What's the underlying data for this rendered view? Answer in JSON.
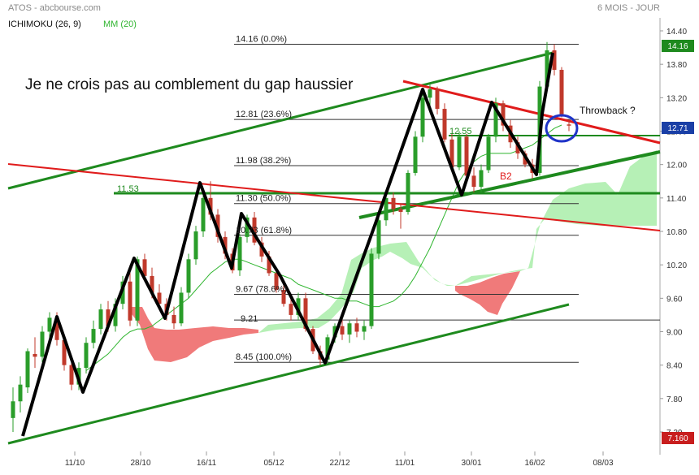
{
  "header": {
    "source": "ATOS - abcbourse.com",
    "period": "6 MOIS - JOUR",
    "indicator_ichimoku": "ICHIMOKU (26, 9)",
    "indicator_mm": "MM (20)"
  },
  "annotations": {
    "comment": "Je ne crois pas au comblement du gap haussier",
    "throwback": "Throwback ?",
    "b2": "B2",
    "level_1153": "11.53",
    "level_1255": "12.55",
    "level_921": "9.21"
  },
  "fib_levels": [
    {
      "label": "14.16  (0.0%)",
      "value": 14.16
    },
    {
      "label": "12.81  (23.6%)",
      "value": 12.81
    },
    {
      "label": "11.98  (38.2%)",
      "value": 11.98
    },
    {
      "label": "11.30  (50.0%)",
      "value": 11.3
    },
    {
      "label": "10.73  (61.8%)",
      "value": 10.73
    },
    {
      "label": "9.67  (78.6%)",
      "value": 9.67
    },
    {
      "label": "8.45  (100.0%)",
      "value": 8.45
    }
  ],
  "price_tags": {
    "high": "14.16",
    "last": "12.71",
    "low": "7.160"
  },
  "colors": {
    "up": "#2a9d2a",
    "down": "#c0392b",
    "cloud_bull": "#b6f0b6",
    "cloud_bear": "#f07a7a",
    "trend_green": "#1e8a1e",
    "trend_red": "#e01b1b",
    "mm20": "#2fb52f",
    "circle": "#1f33c8",
    "tag_high": "#1e8a1e",
    "tag_last": "#1a3fa6",
    "tag_low": "#c81e1e"
  },
  "chart_data": {
    "type": "candlestick",
    "y_axis": {
      "ticks": [
        "14.40",
        "13.80",
        "13.20",
        "12.60",
        "12.00",
        "11.40",
        "10.80",
        "10.20",
        "9.60",
        "9.00",
        "8.40",
        "7.80",
        "7.20"
      ],
      "ylim": [
        7.1,
        14.6
      ]
    },
    "x_axis": {
      "ticks": [
        "11/10",
        "28/10",
        "16/11",
        "05/12",
        "22/12",
        "11/01",
        "30/01",
        "16/02",
        "08/03"
      ]
    },
    "candles": [
      {
        "o": 7.45,
        "h": 8.0,
        "l": 7.2,
        "c": 7.75
      },
      {
        "o": 7.75,
        "h": 8.2,
        "l": 7.55,
        "c": 8.05
      },
      {
        "o": 8.0,
        "h": 8.7,
        "l": 7.9,
        "c": 8.65
      },
      {
        "o": 8.6,
        "h": 8.9,
        "l": 8.35,
        "c": 8.55
      },
      {
        "o": 8.55,
        "h": 9.1,
        "l": 8.45,
        "c": 9.0
      },
      {
        "o": 9.0,
        "h": 9.35,
        "l": 8.85,
        "c": 9.25
      },
      {
        "o": 9.25,
        "h": 9.35,
        "l": 8.75,
        "c": 8.85
      },
      {
        "o": 8.85,
        "h": 8.95,
        "l": 8.3,
        "c": 8.4
      },
      {
        "o": 8.4,
        "h": 8.55,
        "l": 7.95,
        "c": 8.05
      },
      {
        "o": 8.05,
        "h": 8.45,
        "l": 7.95,
        "c": 8.35
      },
      {
        "o": 8.35,
        "h": 8.9,
        "l": 8.25,
        "c": 8.8
      },
      {
        "o": 8.8,
        "h": 9.2,
        "l": 8.7,
        "c": 9.05
      },
      {
        "o": 9.05,
        "h": 9.5,
        "l": 8.95,
        "c": 9.4
      },
      {
        "o": 9.4,
        "h": 9.55,
        "l": 9.0,
        "c": 9.1
      },
      {
        "o": 9.1,
        "h": 9.6,
        "l": 9.0,
        "c": 9.5
      },
      {
        "o": 9.5,
        "h": 10.0,
        "l": 9.4,
        "c": 9.9
      },
      {
        "o": 9.9,
        "h": 10.2,
        "l": 9.1,
        "c": 9.2
      },
      {
        "o": 9.2,
        "h": 10.35,
        "l": 9.1,
        "c": 10.3
      },
      {
        "o": 10.3,
        "h": 10.4,
        "l": 9.9,
        "c": 10.0
      },
      {
        "o": 10.0,
        "h": 10.15,
        "l": 9.6,
        "c": 9.7
      },
      {
        "o": 9.7,
        "h": 9.85,
        "l": 9.4,
        "c": 9.5
      },
      {
        "o": 9.5,
        "h": 9.6,
        "l": 9.2,
        "c": 9.3
      },
      {
        "o": 9.3,
        "h": 9.45,
        "l": 9.05,
        "c": 9.15
      },
      {
        "o": 9.15,
        "h": 9.8,
        "l": 9.1,
        "c": 9.7
      },
      {
        "o": 9.7,
        "h": 10.4,
        "l": 9.6,
        "c": 10.3
      },
      {
        "o": 10.3,
        "h": 10.9,
        "l": 10.2,
        "c": 10.8
      },
      {
        "o": 10.8,
        "h": 11.45,
        "l": 10.7,
        "c": 11.4
      },
      {
        "o": 11.4,
        "h": 11.7,
        "l": 11.0,
        "c": 11.1
      },
      {
        "o": 11.1,
        "h": 11.2,
        "l": 10.6,
        "c": 10.7
      },
      {
        "o": 10.7,
        "h": 10.8,
        "l": 10.3,
        "c": 10.4
      },
      {
        "o": 10.4,
        "h": 10.5,
        "l": 10.05,
        "c": 10.1
      },
      {
        "o": 10.1,
        "h": 10.75,
        "l": 10.0,
        "c": 10.7
      },
      {
        "o": 10.7,
        "h": 11.1,
        "l": 10.6,
        "c": 11.05
      },
      {
        "o": 11.05,
        "h": 11.15,
        "l": 10.55,
        "c": 10.6
      },
      {
        "o": 10.6,
        "h": 10.7,
        "l": 10.25,
        "c": 10.35
      },
      {
        "o": 10.35,
        "h": 10.45,
        "l": 10.0,
        "c": 10.05
      },
      {
        "o": 10.05,
        "h": 10.15,
        "l": 9.7,
        "c": 9.75
      },
      {
        "o": 9.75,
        "h": 9.85,
        "l": 9.45,
        "c": 9.5
      },
      {
        "o": 9.5,
        "h": 9.6,
        "l": 9.2,
        "c": 9.3
      },
      {
        "o": 9.3,
        "h": 9.7,
        "l": 9.2,
        "c": 9.6
      },
      {
        "o": 9.6,
        "h": 9.7,
        "l": 9.0,
        "c": 9.05
      },
      {
        "o": 9.05,
        "h": 9.1,
        "l": 8.6,
        "c": 8.65
      },
      {
        "o": 8.65,
        "h": 8.75,
        "l": 8.4,
        "c": 8.5
      },
      {
        "o": 8.5,
        "h": 8.95,
        "l": 8.45,
        "c": 8.9
      },
      {
        "o": 8.9,
        "h": 9.15,
        "l": 8.8,
        "c": 9.1
      },
      {
        "o": 9.1,
        "h": 9.25,
        "l": 8.85,
        "c": 8.95
      },
      {
        "o": 8.95,
        "h": 9.2,
        "l": 8.8,
        "c": 9.15
      },
      {
        "o": 9.15,
        "h": 9.25,
        "l": 8.9,
        "c": 9.0
      },
      {
        "o": 9.0,
        "h": 9.2,
        "l": 8.85,
        "c": 9.1
      },
      {
        "o": 9.1,
        "h": 10.5,
        "l": 9.05,
        "c": 10.4
      },
      {
        "o": 10.4,
        "h": 11.1,
        "l": 10.3,
        "c": 11.0
      },
      {
        "o": 11.0,
        "h": 11.5,
        "l": 10.9,
        "c": 11.4
      },
      {
        "o": 11.4,
        "h": 11.5,
        "l": 11.1,
        "c": 11.2
      },
      {
        "o": 11.2,
        "h": 11.3,
        "l": 10.85,
        "c": 11.15
      },
      {
        "o": 11.15,
        "h": 11.9,
        "l": 11.1,
        "c": 11.85
      },
      {
        "o": 11.85,
        "h": 12.6,
        "l": 11.8,
        "c": 12.5
      },
      {
        "o": 12.5,
        "h": 13.3,
        "l": 12.4,
        "c": 13.2
      },
      {
        "o": 13.2,
        "h": 13.45,
        "l": 13.0,
        "c": 13.35
      },
      {
        "o": 13.35,
        "h": 13.4,
        "l": 12.9,
        "c": 13.0
      },
      {
        "o": 13.0,
        "h": 13.1,
        "l": 12.4,
        "c": 12.45
      },
      {
        "o": 12.45,
        "h": 12.55,
        "l": 11.9,
        "c": 11.95
      },
      {
        "o": 11.95,
        "h": 12.6,
        "l": 11.9,
        "c": 12.5
      },
      {
        "o": 12.5,
        "h": 12.55,
        "l": 11.75,
        "c": 11.8
      },
      {
        "o": 11.8,
        "h": 11.95,
        "l": 11.5,
        "c": 11.6
      },
      {
        "o": 11.6,
        "h": 12.0,
        "l": 11.5,
        "c": 11.9
      },
      {
        "o": 11.9,
        "h": 12.55,
        "l": 11.85,
        "c": 12.5
      },
      {
        "o": 12.5,
        "h": 13.2,
        "l": 12.4,
        "c": 13.1
      },
      {
        "o": 13.1,
        "h": 13.15,
        "l": 12.6,
        "c": 12.7
      },
      {
        "o": 12.7,
        "h": 12.8,
        "l": 12.3,
        "c": 12.4
      },
      {
        "o": 12.4,
        "h": 12.5,
        "l": 12.1,
        "c": 12.2
      },
      {
        "o": 12.2,
        "h": 12.25,
        "l": 11.95,
        "c": 12.0
      },
      {
        "o": 12.0,
        "h": 12.1,
        "l": 11.75,
        "c": 11.85
      },
      {
        "o": 11.85,
        "h": 13.5,
        "l": 11.8,
        "c": 13.4
      },
      {
        "o": 13.4,
        "h": 14.2,
        "l": 13.3,
        "c": 14.05
      },
      {
        "o": 14.05,
        "h": 14.16,
        "l": 13.6,
        "c": 13.7
      },
      {
        "o": 13.7,
        "h": 13.75,
        "l": 12.85,
        "c": 12.9
      },
      {
        "o": 12.72,
        "h": 12.8,
        "l": 12.6,
        "c": 12.71
      }
    ],
    "mm20": [
      8.3,
      8.4,
      8.5,
      8.6,
      8.75,
      8.9,
      9.0,
      9.05,
      9.05,
      9.1,
      9.2,
      9.3,
      9.4,
      9.5,
      9.6,
      9.75,
      9.9,
      10.05,
      10.15,
      10.25,
      10.3,
      10.3,
      10.25,
      10.2,
      10.15,
      10.1,
      10.05,
      10.0,
      9.95,
      9.85,
      9.8,
      9.75,
      9.7,
      9.65,
      9.6,
      9.6,
      9.55,
      9.55,
      9.5,
      9.45,
      9.45,
      9.5,
      9.55,
      9.65,
      9.8,
      10.0,
      10.25,
      10.5,
      10.8,
      11.1,
      11.4,
      11.7,
      11.9,
      12.05,
      12.15,
      12.2,
      12.2,
      12.2,
      12.2,
      12.25,
      12.3,
      12.35,
      12.45,
      12.55,
      12.65,
      12.71
    ]
  }
}
